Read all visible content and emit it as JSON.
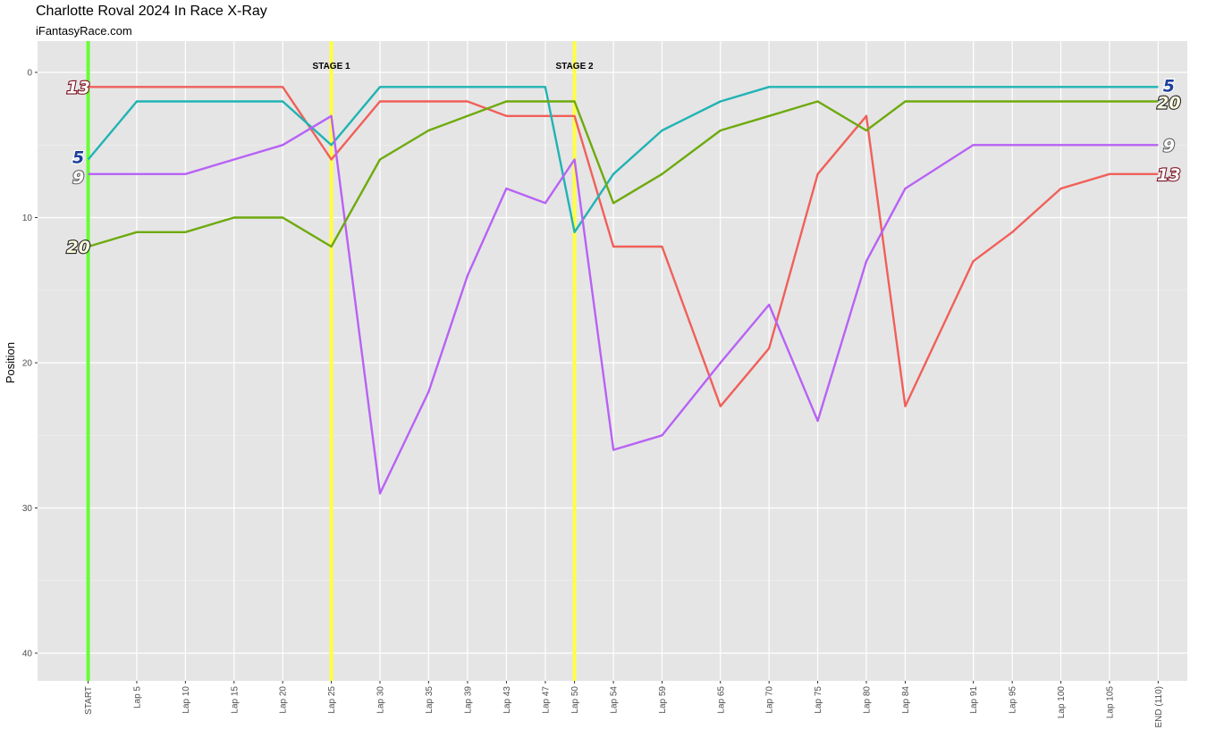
{
  "header": {
    "title": "Charlotte Roval 2024 In Race X-Ray",
    "subtitle": "iFantasyRace.com"
  },
  "chart_data": {
    "type": "line",
    "title": "Charlotte Roval 2024 In Race X-Ray",
    "subtitle": "iFantasyRace.com",
    "xlabel": "",
    "ylabel": "Position",
    "ylim": [
      0,
      42
    ],
    "y_reversed": true,
    "y_ticks": [
      0,
      10,
      20,
      30,
      40
    ],
    "grid": true,
    "x_ticks": [
      {
        "lap": 0,
        "label": "START"
      },
      {
        "lap": 5,
        "label": "Lap 5"
      },
      {
        "lap": 10,
        "label": "Lap 10"
      },
      {
        "lap": 15,
        "label": "Lap 15"
      },
      {
        "lap": 20,
        "label": "Lap 20"
      },
      {
        "lap": 25,
        "label": "Lap 25"
      },
      {
        "lap": 30,
        "label": "Lap 30"
      },
      {
        "lap": 35,
        "label": "Lap 35"
      },
      {
        "lap": 39,
        "label": "Lap 39"
      },
      {
        "lap": 43,
        "label": "Lap 43"
      },
      {
        "lap": 47,
        "label": "Lap 47"
      },
      {
        "lap": 50,
        "label": "Lap 50"
      },
      {
        "lap": 54,
        "label": "Lap 54"
      },
      {
        "lap": 59,
        "label": "Lap 59"
      },
      {
        "lap": 65,
        "label": "Lap 65"
      },
      {
        "lap": 70,
        "label": "Lap 70"
      },
      {
        "lap": 75,
        "label": "Lap 75"
      },
      {
        "lap": 80,
        "label": "Lap 80"
      },
      {
        "lap": 84,
        "label": "Lap 84"
      },
      {
        "lap": 91,
        "label": "Lap 91"
      },
      {
        "lap": 95,
        "label": "Lap 95"
      },
      {
        "lap": 100,
        "label": "Lap 100"
      },
      {
        "lap": 105,
        "label": "Lap 105"
      },
      {
        "lap": 110,
        "label": "END (110)"
      }
    ],
    "xlim": [
      -5.2,
      113
    ],
    "start_line": {
      "lap": 0,
      "color": "#66ff33"
    },
    "stage_lines": [
      {
        "lap": 25,
        "label": "STAGE 1",
        "color": "#ffff40"
      },
      {
        "lap": 50,
        "label": "STAGE 2",
        "color": "#ffff40"
      }
    ],
    "series": [
      {
        "name": "13",
        "color": "#f0605a",
        "badge_fill": "#ffffff",
        "badge_stroke": "#7a1020",
        "values": [
          1,
          1,
          1,
          1,
          1,
          6,
          2,
          2,
          2,
          3,
          3,
          3,
          12,
          12,
          23,
          19,
          7,
          3,
          23,
          13,
          11,
          8,
          7,
          7
        ]
      },
      {
        "name": "5",
        "color": "#21b3b4",
        "badge_fill": "#1d3f9c",
        "badge_stroke": "#ffffff",
        "values": [
          6,
          2,
          2,
          2,
          2,
          5,
          1,
          1,
          1,
          1,
          1,
          11,
          7,
          4,
          2,
          1,
          1,
          1,
          1,
          1,
          1,
          1,
          1,
          1
        ]
      },
      {
        "name": "9",
        "color": "#b862f5",
        "badge_fill": "#ffffff",
        "badge_stroke": "#666666",
        "values": [
          7,
          7,
          7,
          6,
          5,
          3,
          29,
          22,
          14,
          8,
          9,
          6,
          26,
          25,
          20,
          16,
          24,
          13,
          8,
          5,
          5,
          5,
          5,
          5
        ]
      },
      {
        "name": "20",
        "color": "#6eaa0e",
        "badge_fill": "#fffbe0",
        "badge_stroke": "#222222",
        "values": [
          12,
          11,
          11,
          10,
          10,
          12,
          6,
          4,
          3,
          2,
          2,
          2,
          9,
          7,
          4,
          3,
          2,
          4,
          2,
          2,
          2,
          2,
          2,
          2
        ]
      }
    ]
  }
}
